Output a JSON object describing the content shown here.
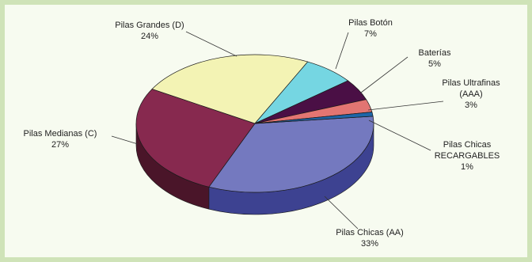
{
  "chart_data": {
    "type": "pie",
    "title": "",
    "three_d": true,
    "legend": "none",
    "slices": [
      {
        "label": "Pilas Chicas (AA)",
        "percent_label": "33%",
        "value": 33,
        "color": "#7479bf",
        "side_color": "#3d4291"
      },
      {
        "label": "Pilas Medianas (C)",
        "percent_label": "27%",
        "value": 27,
        "color": "#87294f",
        "side_color": "#4a1529"
      },
      {
        "label": "Pilas Grandes (D)",
        "percent_label": "24%",
        "value": 24,
        "color": "#f3f3b4",
        "side_color": "#b3b37a"
      },
      {
        "label": "Pilas Botón",
        "percent_label": "7%",
        "value": 7,
        "color": "#75d6e2",
        "side_color": "#3e97a2"
      },
      {
        "label": "Baterías",
        "percent_label": "5%",
        "value": 5,
        "color": "#4a0f45",
        "side_color": "#2a0826"
      },
      {
        "label": "Pilas Ultrafinas (AAA)",
        "percent_label": "3%",
        "value": 3,
        "color": "#e27572",
        "side_color": "#a4413f"
      },
      {
        "label": "Pilas Chicas RECARGABLES",
        "percent_label": "1%",
        "value": 1,
        "color": "#1e66a8",
        "side_color": "#11406d"
      }
    ]
  },
  "labels": [
    {
      "lines": [
        "Pilas Chicas (AA)",
        "33%"
      ]
    },
    {
      "lines": [
        "Pilas Medianas (C)",
        "27%"
      ]
    },
    {
      "lines": [
        "Pilas Grandes (D)",
        "24%"
      ]
    },
    {
      "lines": [
        "Pilas Botón",
        "7%"
      ]
    },
    {
      "lines": [
        "Baterías",
        "5%"
      ]
    },
    {
      "lines": [
        "Pilas Ultrafinas",
        "(AAA)",
        "3%"
      ]
    },
    {
      "lines": [
        "Pilas Chicas",
        "RECARGABLES",
        "1%"
      ]
    }
  ]
}
